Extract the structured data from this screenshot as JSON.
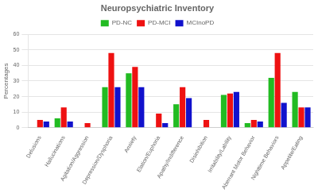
{
  "chart_data": {
    "type": "bar",
    "title": "Neuropsychiatric Inventory",
    "ylabel": "Percentages",
    "categories": [
      "Delusions",
      "Hallucinations",
      "Agitation/Aggression",
      "Depression/Dysphoria",
      "Anxiety",
      "Elation/Euphoria",
      "Apathy/Indifference",
      "Disinhibition",
      "Irritability/Lability",
      "Aberrant Motor Behavior",
      "Nighttime Behaviors",
      "Appetite/Eating"
    ],
    "series": [
      {
        "name": "PD-NC",
        "color": "#22bb22",
        "values": [
          0,
          6,
          0,
          26,
          35,
          0,
          15,
          0,
          21,
          3,
          32,
          23
        ]
      },
      {
        "name": "PD-MCI",
        "color": "#ee1111",
        "values": [
          5,
          13,
          3,
          48,
          39,
          9,
          26,
          5,
          22,
          5,
          48,
          13
        ]
      },
      {
        "name": "MCInoPD",
        "color": "#1111cc",
        "values": [
          4,
          4,
          0,
          26,
          26,
          3,
          19,
          0,
          23,
          4,
          16,
          13
        ]
      }
    ],
    "ylim": [
      0,
      60
    ],
    "yticks": [
      0,
      10,
      20,
      30,
      40,
      50,
      60
    ],
    "grid": true,
    "legend": "top"
  }
}
